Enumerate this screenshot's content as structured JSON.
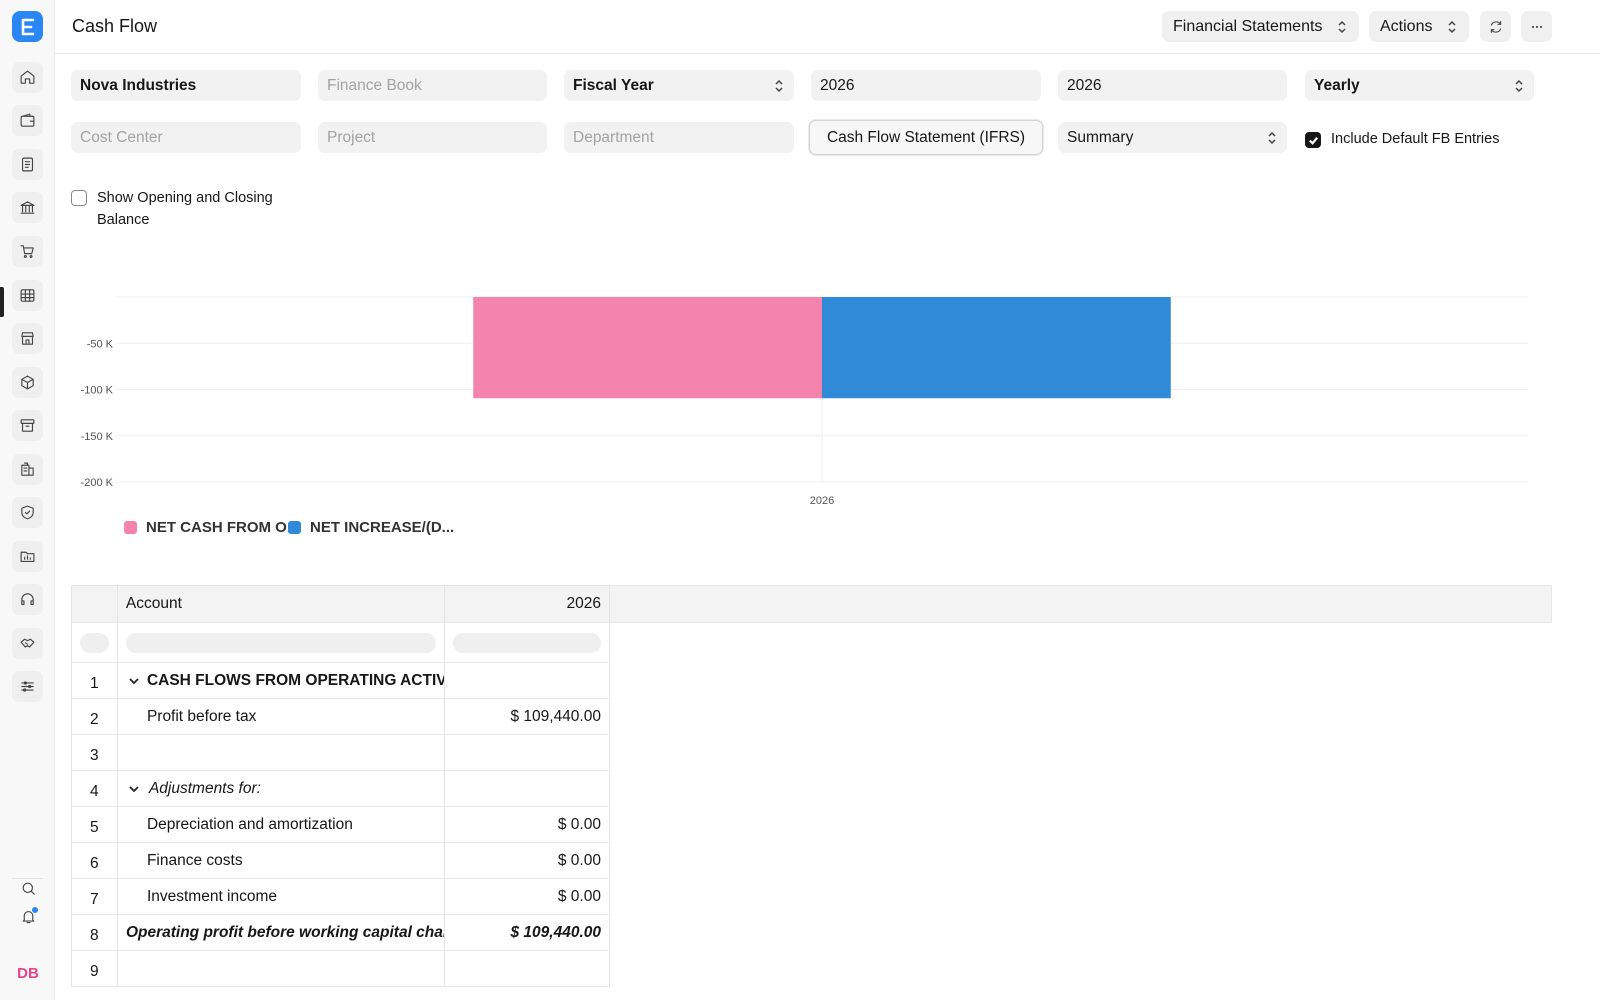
{
  "header": {
    "title": "Cash Flow",
    "financial_statements_label": "Financial Statements",
    "actions_label": "Actions"
  },
  "sidebar": {
    "logo_letter": "E",
    "items": [
      "home-icon",
      "wallet-icon",
      "file-text-icon",
      "bank-icon",
      "cart-icon",
      "table-icon",
      "store-icon",
      "package-icon",
      "archive-icon",
      "building-icon",
      "shield-icon",
      "folder-chart-icon",
      "headset-icon",
      "handshake-icon",
      "sliders-icon"
    ],
    "active_item": "table-icon",
    "avatar_initials": "DB"
  },
  "filters": {
    "company": "Nova Industries",
    "finance_book_placeholder": "Finance Book",
    "filter_based_on": "Fiscal Year",
    "from_fiscal_year": "2026",
    "to_fiscal_year": "2026",
    "periodicity": "Yearly",
    "cost_center_placeholder": "Cost Center",
    "project_placeholder": "Project",
    "department_placeholder": "Department",
    "report_template": "Cash Flow Statement (IFRS)",
    "view": "Summary",
    "include_default_fb_label": "Include Default FB Entries",
    "include_default_fb_checked": true,
    "show_opening_closing_label": "Show Opening and Closing Balance",
    "show_opening_closing_checked": false
  },
  "chart_data": {
    "type": "bar",
    "categories": [
      "2026"
    ],
    "series": [
      {
        "name": "NET CASH FROM O...",
        "values": [
          -109440
        ],
        "color": "#f483ad"
      },
      {
        "name": "NET INCREASE/(D...",
        "values": [
          -109440
        ],
        "color": "#318ad8"
      }
    ],
    "yticks": [
      "-50 K",
      "-100 K",
      "-150 K",
      "-200 K"
    ],
    "ylim": [
      -200000,
      0
    ],
    "grid": true,
    "legend_position": "bottom-left"
  },
  "table": {
    "columns": [
      "Account",
      "2026"
    ],
    "rows": [
      {
        "num": "1",
        "account": "CASH FLOWS FROM OPERATING ACTIVITIES",
        "value": "",
        "style": "group-bold"
      },
      {
        "num": "2",
        "account": "Profit before tax",
        "value": "$ 109,440.00",
        "style": "child"
      },
      {
        "num": "3",
        "account": "",
        "value": "",
        "style": "blank"
      },
      {
        "num": "4",
        "account": "Adjustments for:",
        "value": "",
        "style": "group-italic"
      },
      {
        "num": "5",
        "account": "Depreciation and amortization",
        "value": "$ 0.00",
        "style": "child"
      },
      {
        "num": "6",
        "account": "Finance costs",
        "value": "$ 0.00",
        "style": "child"
      },
      {
        "num": "7",
        "account": "Investment income",
        "value": "$ 0.00",
        "style": "child"
      },
      {
        "num": "8",
        "account": "Operating profit before working capital changes",
        "value": "$ 109,440.00",
        "style": "total"
      },
      {
        "num": "9",
        "account": "",
        "value": "",
        "style": "blank"
      }
    ]
  }
}
